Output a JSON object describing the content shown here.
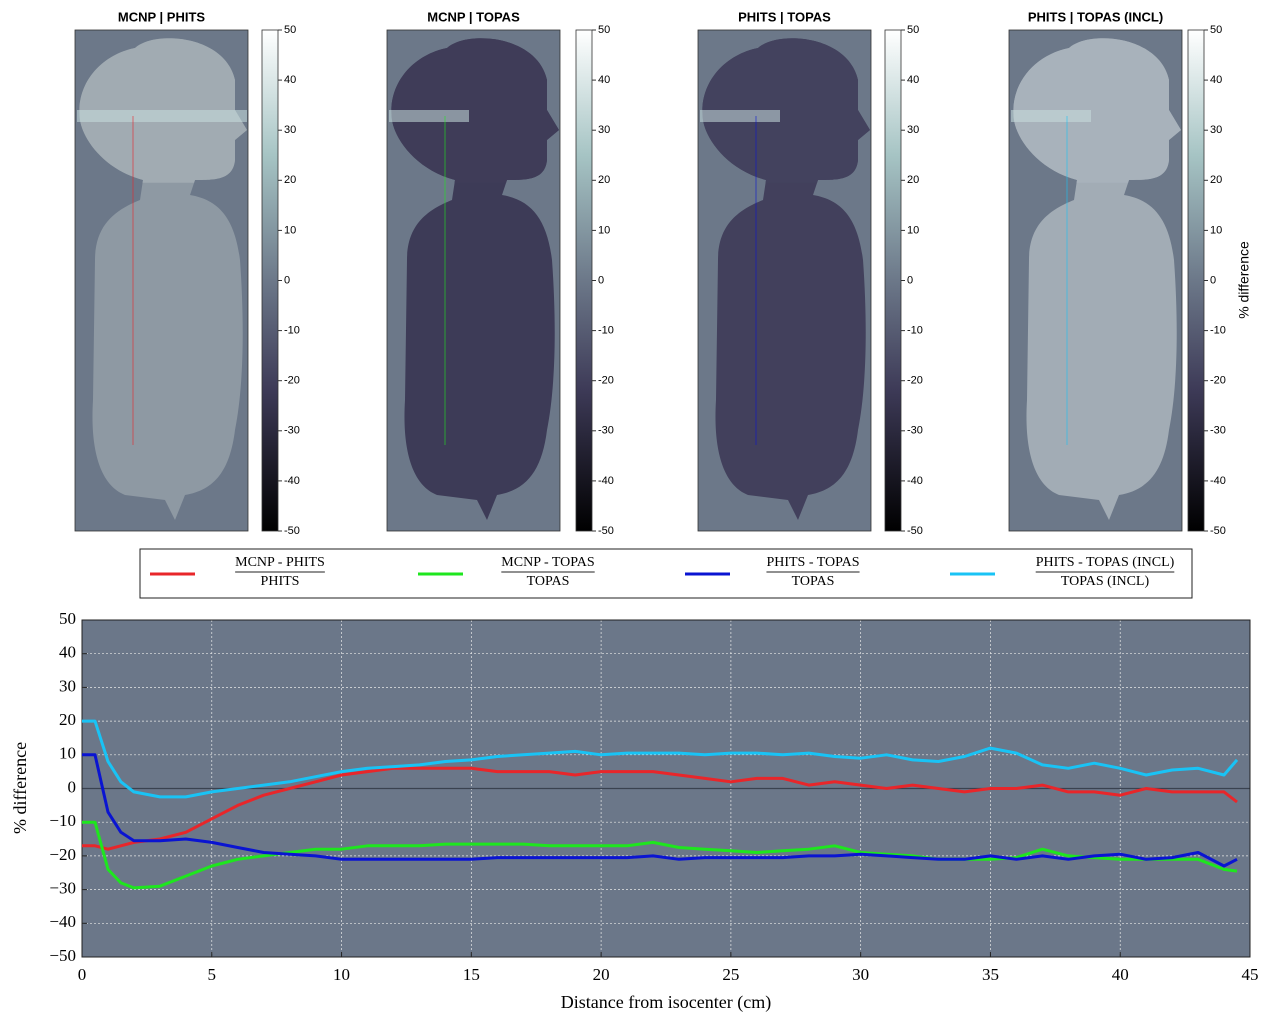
{
  "chart_data": [
    {
      "type": "heatmap",
      "title": "MCNP | PHITS",
      "zlim": [
        -50,
        50
      ],
      "zticks": [
        -50,
        -40,
        -30,
        -20,
        -10,
        0,
        10,
        20,
        30,
        40,
        50
      ]
    },
    {
      "type": "heatmap",
      "title": "MCNP | TOPAS",
      "zlim": [
        -50,
        50
      ],
      "zticks": [
        -50,
        -40,
        -30,
        -20,
        -10,
        0,
        10,
        20,
        30,
        40,
        50
      ]
    },
    {
      "type": "heatmap",
      "title": "PHITS | TOPAS",
      "zlim": [
        -50,
        50
      ],
      "zticks": [
        -50,
        -40,
        -30,
        -20,
        -10,
        0,
        10,
        20,
        30,
        40,
        50
      ]
    },
    {
      "type": "heatmap",
      "title": "PHITS | TOPAS (INCL)",
      "zlim": [
        -50,
        50
      ],
      "zticks": [
        -50,
        -40,
        -30,
        -20,
        -10,
        0,
        10,
        20,
        30,
        40,
        50
      ],
      "zlabel": "% difference"
    },
    {
      "type": "line",
      "xlabel": "Distance from isocenter (cm)",
      "ylabel": "% difference",
      "xlim": [
        0,
        45
      ],
      "xticks": [
        0,
        5,
        10,
        15,
        20,
        25,
        30,
        35,
        40,
        45
      ],
      "ylim": [
        -50,
        50
      ],
      "yticks": [
        {
          "value": -50,
          "label": "−50"
        },
        {
          "value": -40,
          "label": "−40"
        },
        {
          "value": -30,
          "label": "−30"
        },
        {
          "value": -20,
          "label": "−20"
        },
        {
          "value": -10,
          "label": "−10"
        },
        0,
        10,
        20,
        30,
        40,
        50
      ],
      "grid": true,
      "legend": "top",
      "x": [
        0,
        0.5,
        1,
        1.5,
        2,
        3,
        4,
        5,
        6,
        7,
        8,
        9,
        10,
        11,
        12,
        13,
        14,
        15,
        16,
        17,
        18,
        19,
        20,
        21,
        22,
        23,
        24,
        25,
        26,
        27,
        28,
        29,
        30,
        31,
        32,
        33,
        34,
        35,
        36,
        37,
        38,
        39,
        40,
        41,
        42,
        43,
        44,
        44.5
      ],
      "series": [
        {
          "name": "MCNP - PHITS",
          "denominator": "PHITS",
          "color": "#e8262a",
          "values": [
            -17,
            -17,
            -18,
            -17,
            -16,
            -15,
            -13,
            -9,
            -5,
            -2,
            0,
            2,
            4,
            5,
            6,
            6,
            6,
            6,
            5,
            5,
            5,
            4,
            5,
            5,
            5,
            4,
            3,
            2,
            3,
            3,
            1,
            2,
            1,
            0,
            1,
            0,
            -1,
            0,
            0,
            1,
            -1,
            -1,
            -2,
            0,
            -1,
            -1,
            -1,
            -4
          ]
        },
        {
          "name": "MCNP - TOPAS",
          "denominator": "TOPAS",
          "color": "#1ee61e",
          "values": [
            -10,
            -10,
            -24,
            -28,
            -29.5,
            -29,
            -26,
            -23,
            -21,
            -20,
            -19,
            -18,
            -18,
            -17,
            -17,
            -17,
            -16.5,
            -16.5,
            -16.5,
            -16.5,
            -17,
            -17,
            -17,
            -17,
            -16,
            -17.5,
            -18,
            -18.5,
            -19,
            -18.5,
            -18,
            -17,
            -19,
            -19.5,
            -20,
            -21,
            -21,
            -21,
            -20.5,
            -18,
            -20,
            -20.5,
            -21,
            -21,
            -21,
            -21,
            -24,
            -24.5
          ]
        },
        {
          "name": "PHITS - TOPAS",
          "denominator": "TOPAS",
          "color": "#0a14d2",
          "values": [
            10,
            10,
            -7,
            -13,
            -15.5,
            -15.5,
            -15,
            -16,
            -17.5,
            -19,
            -19.5,
            -20,
            -21,
            -21,
            -21,
            -21,
            -21,
            -21,
            -20.5,
            -20.5,
            -20.5,
            -20.5,
            -20.5,
            -20.5,
            -20,
            -21,
            -20.5,
            -20.5,
            -20.5,
            -20.5,
            -20,
            -20,
            -19.5,
            -20,
            -20.5,
            -21,
            -21,
            -20,
            -21,
            -20,
            -21,
            -20,
            -19.5,
            -21,
            -20.5,
            -19,
            -23,
            -21
          ]
        },
        {
          "name": "PHITS - TOPAS (INCL)",
          "denominator": "TOPAS (INCL)",
          "color": "#19c3f5",
          "values": [
            20,
            20,
            8,
            2,
            -1,
            -2.5,
            -2.5,
            -1,
            0,
            1,
            2,
            3.5,
            5,
            6,
            6.5,
            7,
            8,
            8.5,
            9.5,
            10,
            10.5,
            11,
            10,
            10.5,
            10.5,
            10.5,
            10,
            10.5,
            10.5,
            10,
            10.5,
            9.5,
            9,
            10,
            8.5,
            8,
            9.5,
            12,
            10.5,
            7,
            6,
            7.5,
            6,
            4,
            5.5,
            6,
            4,
            8.5
          ]
        }
      ]
    }
  ]
}
